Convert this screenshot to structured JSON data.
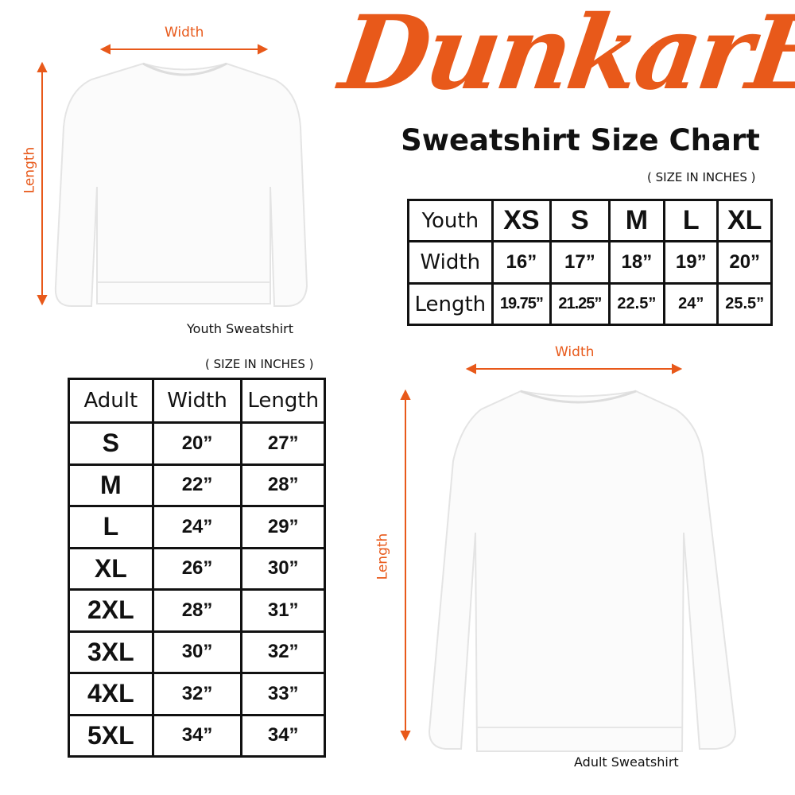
{
  "brand": {
    "logo_text": "DunkarE",
    "color": "#e8591a"
  },
  "title": "Sweatshirt Size Chart",
  "youth": {
    "units_note": "( SIZE IN INCHES )",
    "caption": "Youth Sweatshirt",
    "width_label": "Width",
    "length_label": "Length",
    "header": [
      "Youth",
      "XS",
      "S",
      "M",
      "L",
      "XL"
    ],
    "rows": [
      [
        "Width",
        "16”",
        "17”",
        "18”",
        "19”",
        "20”"
      ],
      [
        "Length",
        "19.75”",
        "21.25”",
        "22.5”",
        "24”",
        "25.5”"
      ]
    ]
  },
  "adult": {
    "units_note": "( SIZE IN INCHES )",
    "caption": "Adult Sweatshirt",
    "width_label": "Width",
    "length_label": "Length",
    "header": [
      "Adult",
      "Width",
      "Length"
    ],
    "rows": [
      [
        "S",
        "20”",
        "27”"
      ],
      [
        "M",
        "22”",
        "28”"
      ],
      [
        "L",
        "24”",
        "29”"
      ],
      [
        "XL",
        "26”",
        "30”"
      ],
      [
        "2XL",
        "28”",
        "31”"
      ],
      [
        "3XL",
        "30”",
        "32”"
      ],
      [
        "4XL",
        "32”",
        "33”"
      ],
      [
        "5XL",
        "34”",
        "34”"
      ]
    ]
  }
}
